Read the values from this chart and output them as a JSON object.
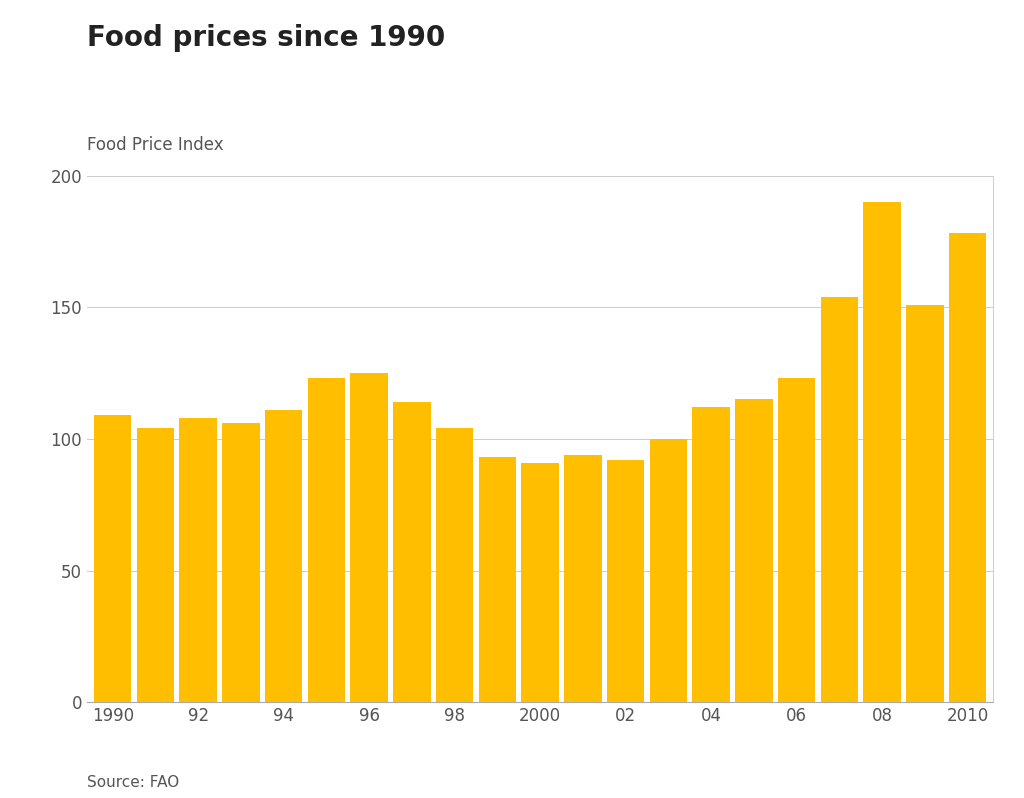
{
  "title": "Food prices since 1990",
  "ylabel": "Food Price Index",
  "source": "Source: FAO",
  "bar_color": "#FFBF00",
  "background_color": "#FFFFFF",
  "years": [
    1990,
    1991,
    1992,
    1993,
    1994,
    1995,
    1996,
    1997,
    1998,
    1999,
    2000,
    2001,
    2002,
    2003,
    2004,
    2005,
    2006,
    2007,
    2008,
    2009,
    2010
  ],
  "values": [
    109,
    104,
    108,
    106,
    111,
    123,
    125,
    114,
    104,
    93,
    91,
    94,
    92,
    100,
    112,
    115,
    123,
    154,
    190,
    151,
    178
  ],
  "xtick_labels": [
    "1990",
    "92",
    "94",
    "96",
    "98",
    "2000",
    "02",
    "04",
    "06",
    "08",
    "2010"
  ],
  "xtick_positions": [
    1990,
    1992,
    1994,
    1996,
    1998,
    2000,
    2002,
    2004,
    2006,
    2008,
    2010
  ],
  "ytick_positions": [
    0,
    50,
    100,
    150,
    200
  ],
  "ylim": [
    0,
    200
  ],
  "xlim": [
    1989.4,
    2010.6
  ],
  "bar_width": 0.88,
  "title_fontsize": 20,
  "ylabel_fontsize": 12,
  "source_fontsize": 11,
  "tick_fontsize": 12,
  "grid_color": "#CCCCCC",
  "spine_color": "#AAAAAA",
  "title_color": "#222222",
  "label_color": "#555555",
  "tick_color": "#555555"
}
